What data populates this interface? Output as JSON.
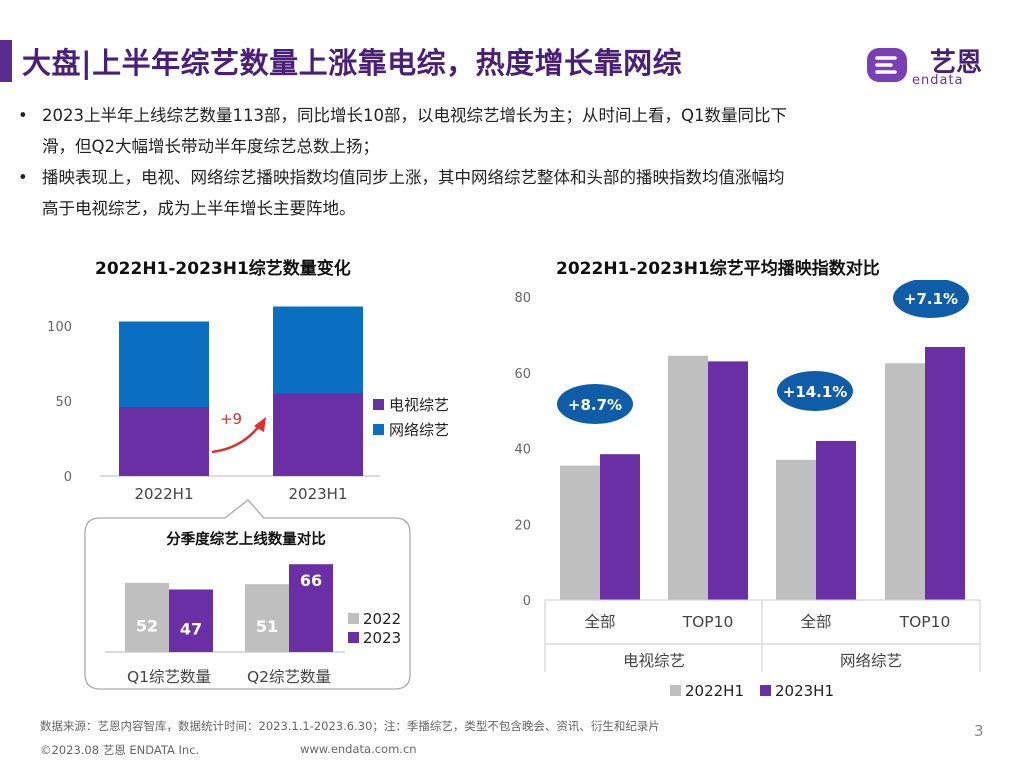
{
  "header": {
    "title": "大盘|上半年综艺数量上涨靠电综，热度增长靠网综",
    "logo_text": "艺恩",
    "logo_sub": "endata"
  },
  "bullets": [
    {
      "line1": "2023上半年上线综艺数量113部，同比增长10部，以电视综艺增长为主；从时间上看，Q1数量同比下",
      "line2": "滑，但Q2大幅增长带动半年度综艺总数上扬；"
    },
    {
      "line1": "播映表现上，电视、网络综艺播映指数均值同步上涨，其中网络综艺整体和头部的播映指数均值涨幅均",
      "line2": "高于电视综艺，成为上半年增长主要阵地。"
    }
  ],
  "chart_data": [
    {
      "type": "bar",
      "stacked": true,
      "title": "2022H1-2023H1综艺数量变化",
      "categories": [
        "2022H1",
        "2023H1"
      ],
      "series": [
        {
          "name": "电视综艺",
          "values": [
            46,
            55
          ],
          "color": "#6B2FA5"
        },
        {
          "name": "网络综艺",
          "values": [
            57,
            58
          ],
          "color": "#0B6FC1"
        }
      ],
      "ylim": [
        0,
        100
      ],
      "yticks": [
        0,
        50,
        100
      ],
      "annotation": "+9",
      "legend_position": "right"
    },
    {
      "type": "bar",
      "title": "分季度综艺上线数量对比",
      "categories": [
        "Q1综艺数量",
        "Q2综艺数量"
      ],
      "series": [
        {
          "name": "2022",
          "values": [
            52,
            51
          ],
          "color": "#BFBFBF"
        },
        {
          "name": "2023",
          "values": [
            47,
            66
          ],
          "color": "#6B2FA5"
        }
      ],
      "legend_position": "right"
    },
    {
      "type": "bar",
      "title": "2022H1-2023H1综艺平均播映指数对比",
      "categories": [
        "全部",
        "TOP10",
        "全部",
        "TOP10"
      ],
      "groups": [
        {
          "label": "电视综艺",
          "span": 2
        },
        {
          "label": "网络综艺",
          "span": 2
        }
      ],
      "series": [
        {
          "name": "2022H1",
          "values": [
            35.5,
            64.5,
            37,
            62.5
          ],
          "color": "#BFBFBF"
        },
        {
          "name": "2023H1",
          "values": [
            38.5,
            63,
            42,
            66.8
          ],
          "color": "#6B2FA5"
        }
      ],
      "ylim": [
        0,
        80
      ],
      "yticks": [
        0,
        20,
        40,
        60,
        80
      ],
      "annotations": [
        "+8.7%",
        "+14.1%",
        "+7.1%"
      ],
      "legend_position": "bottom"
    }
  ],
  "footer": {
    "source": "数据来源：艺恩内容智库，数据统计时间：2023.1.1-2023.6.30；注：季播综艺，类型不包含晚会、资讯、衍生和纪录片",
    "copyright": "©2023.08 艺恩 ENDATA Inc.",
    "website": "www.endata.com.cn",
    "page": "3"
  },
  "colors": {
    "accent": "#5B2C8F",
    "purple": "#6B2FA5",
    "blue": "#0B6FC1",
    "gray": "#BFBFBF",
    "bubble": "#0F5CA8"
  }
}
